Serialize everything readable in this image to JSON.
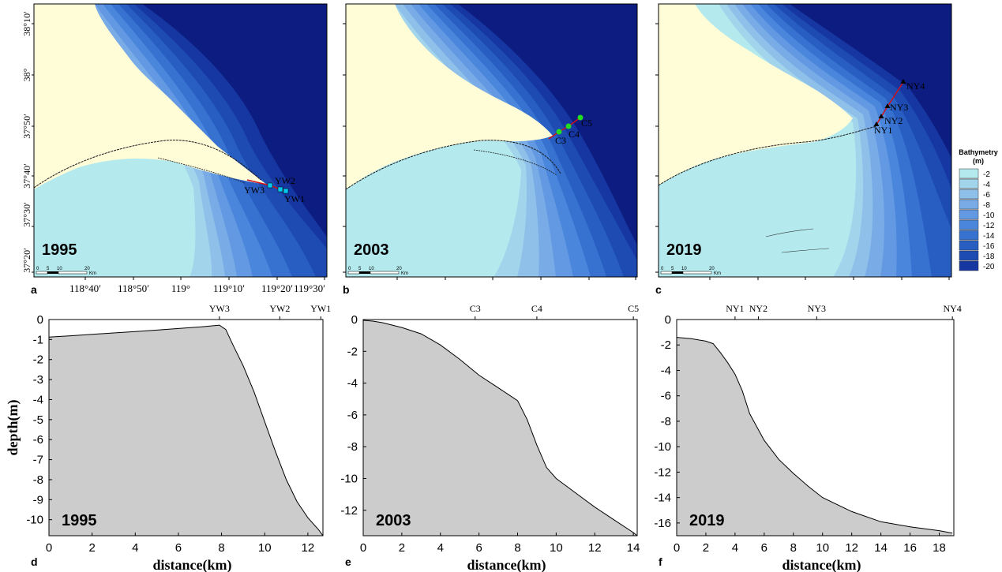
{
  "maps": [
    {
      "year": "1995",
      "panel": "a",
      "stations": [
        {
          "name": "YW3",
          "marker": "square",
          "color": "#00c8f0"
        },
        {
          "name": "YW2",
          "marker": "square",
          "color": "#00c8f0"
        },
        {
          "name": "YW1",
          "marker": "square",
          "color": "#00c8f0"
        }
      ]
    },
    {
      "year": "2003",
      "panel": "b",
      "stations": [
        {
          "name": "C3",
          "marker": "circle",
          "color": "#22dd22"
        },
        {
          "name": "C4",
          "marker": "circle",
          "color": "#22dd22"
        },
        {
          "name": "C5",
          "marker": "circle",
          "color": "#22dd22"
        }
      ]
    },
    {
      "year": "2019",
      "panel": "c",
      "stations": [
        {
          "name": "NY1",
          "marker": "triangle",
          "color": "#000000"
        },
        {
          "name": "NY2",
          "marker": "triangle",
          "color": "#000000"
        },
        {
          "name": "NY3",
          "marker": "triangle",
          "color": "#000000"
        },
        {
          "name": "NY4",
          "marker": "triangle",
          "color": "#000000"
        }
      ]
    }
  ],
  "map_axes": {
    "lat_ticks": [
      "38°10′",
      "38°",
      "37°50′",
      "37°40′",
      "37°30′",
      "37°20′"
    ],
    "lon_ticks": [
      "118°40′",
      "118°50′",
      "119°",
      "119°10′",
      "119°20′",
      "119°30′"
    ]
  },
  "scalebar": {
    "ticks": [
      "0",
      "5",
      "10",
      "20"
    ],
    "unit": "Km"
  },
  "legend": {
    "title_line1": "Bathymetry",
    "title_line2": "(m)",
    "classes": [
      {
        "label": "-2",
        "color": "#b4eaee"
      },
      {
        "label": "-4",
        "color": "#a2d4ec"
      },
      {
        "label": "-6",
        "color": "#8fc0ea"
      },
      {
        "label": "-8",
        "color": "#79abe6"
      },
      {
        "label": "-10",
        "color": "#6299e2"
      },
      {
        "label": "-12",
        "color": "#4a86dc"
      },
      {
        "label": "-14",
        "color": "#3772d0"
      },
      {
        "label": "-16",
        "color": "#285ec2"
      },
      {
        "label": "-18",
        "color": "#1d4bb2"
      },
      {
        "label": "-20",
        "color": "#1637a2"
      }
    ]
  },
  "colors": {
    "land": "#fffcd8",
    "section_line": "#d0101a",
    "profile_fill": "#cccccc",
    "deep_sea": "#0d1c80"
  },
  "chart_data": [
    {
      "type": "area",
      "panel": "d",
      "year": "1995",
      "xlabel": "distance(km)",
      "ylabel": "depth(m)",
      "xlim": [
        0,
        12.7
      ],
      "ylim": [
        -10.8,
        0
      ],
      "xticks": [
        0,
        2,
        4,
        6,
        8,
        10,
        12
      ],
      "yticks": [
        0,
        -1,
        -2,
        -3,
        -4,
        -5,
        -6,
        -7,
        -8,
        -9,
        -10
      ],
      "stations": [
        {
          "name": "YW3",
          "x": 7.9
        },
        {
          "name": "YW2",
          "x": 10.7
        },
        {
          "name": "YW1",
          "x": 12.6
        }
      ],
      "x": [
        0,
        1,
        2,
        3,
        4,
        5,
        6,
        7,
        7.9,
        8.2,
        8.5,
        9,
        9.5,
        10,
        10.5,
        11,
        11.5,
        12,
        12.5,
        12.7
      ],
      "y": [
        -0.88,
        -0.81,
        -0.74,
        -0.67,
        -0.6,
        -0.53,
        -0.45,
        -0.37,
        -0.28,
        -0.5,
        -1.2,
        -2.3,
        -3.6,
        -5.1,
        -6.6,
        -8.0,
        -9.1,
        -9.9,
        -10.5,
        -10.8
      ]
    },
    {
      "type": "area",
      "panel": "e",
      "year": "2003",
      "xlabel": "distance(km)",
      "ylabel": "",
      "xlim": [
        0,
        14.2
      ],
      "ylim": [
        -13.6,
        0
      ],
      "xticks": [
        0,
        2,
        4,
        6,
        8,
        10,
        12,
        14
      ],
      "yticks": [
        0,
        -2,
        -4,
        -6,
        -8,
        -10,
        -12
      ],
      "stations": [
        {
          "name": "C3",
          "x": 5.8
        },
        {
          "name": "C4",
          "x": 9.0
        },
        {
          "name": "C5",
          "x": 14.0
        }
      ],
      "x": [
        0,
        0.5,
        1,
        2,
        3,
        4,
        5,
        6,
        7,
        7.5,
        8,
        8.5,
        9,
        9.5,
        10,
        11,
        12,
        13,
        14,
        14.2
      ],
      "y": [
        -0.05,
        -0.1,
        -0.2,
        -0.5,
        -0.9,
        -1.6,
        -2.5,
        -3.5,
        -4.3,
        -4.7,
        -5.1,
        -6.3,
        -7.9,
        -9.3,
        -10.0,
        -10.9,
        -11.8,
        -12.6,
        -13.4,
        -13.6
      ]
    },
    {
      "type": "area",
      "panel": "f",
      "year": "2019",
      "xlabel": "distance(km)",
      "ylabel": "",
      "xlim": [
        0,
        19
      ],
      "ylim": [
        -17,
        0
      ],
      "xticks": [
        0,
        2,
        4,
        6,
        8,
        10,
        12,
        14,
        16,
        18
      ],
      "yticks": [
        0,
        -2,
        -4,
        -6,
        -8,
        -10,
        -12,
        -14,
        -16
      ],
      "stations": [
        {
          "name": "NY1",
          "x": 4.0
        },
        {
          "name": "NY2",
          "x": 5.6
        },
        {
          "name": "NY3",
          "x": 9.6
        },
        {
          "name": "NY4",
          "x": 18.9
        }
      ],
      "x": [
        0,
        1,
        2,
        2.5,
        3,
        3.5,
        4,
        4.5,
        5,
        6,
        7,
        8,
        9,
        10,
        12,
        14,
        16,
        18,
        18.9
      ],
      "y": [
        -1.4,
        -1.5,
        -1.7,
        -1.9,
        -2.6,
        -3.4,
        -4.3,
        -5.6,
        -7.4,
        -9.5,
        -11.0,
        -12.1,
        -13.1,
        -14.0,
        -15.1,
        -15.9,
        -16.3,
        -16.6,
        -16.8
      ]
    }
  ]
}
